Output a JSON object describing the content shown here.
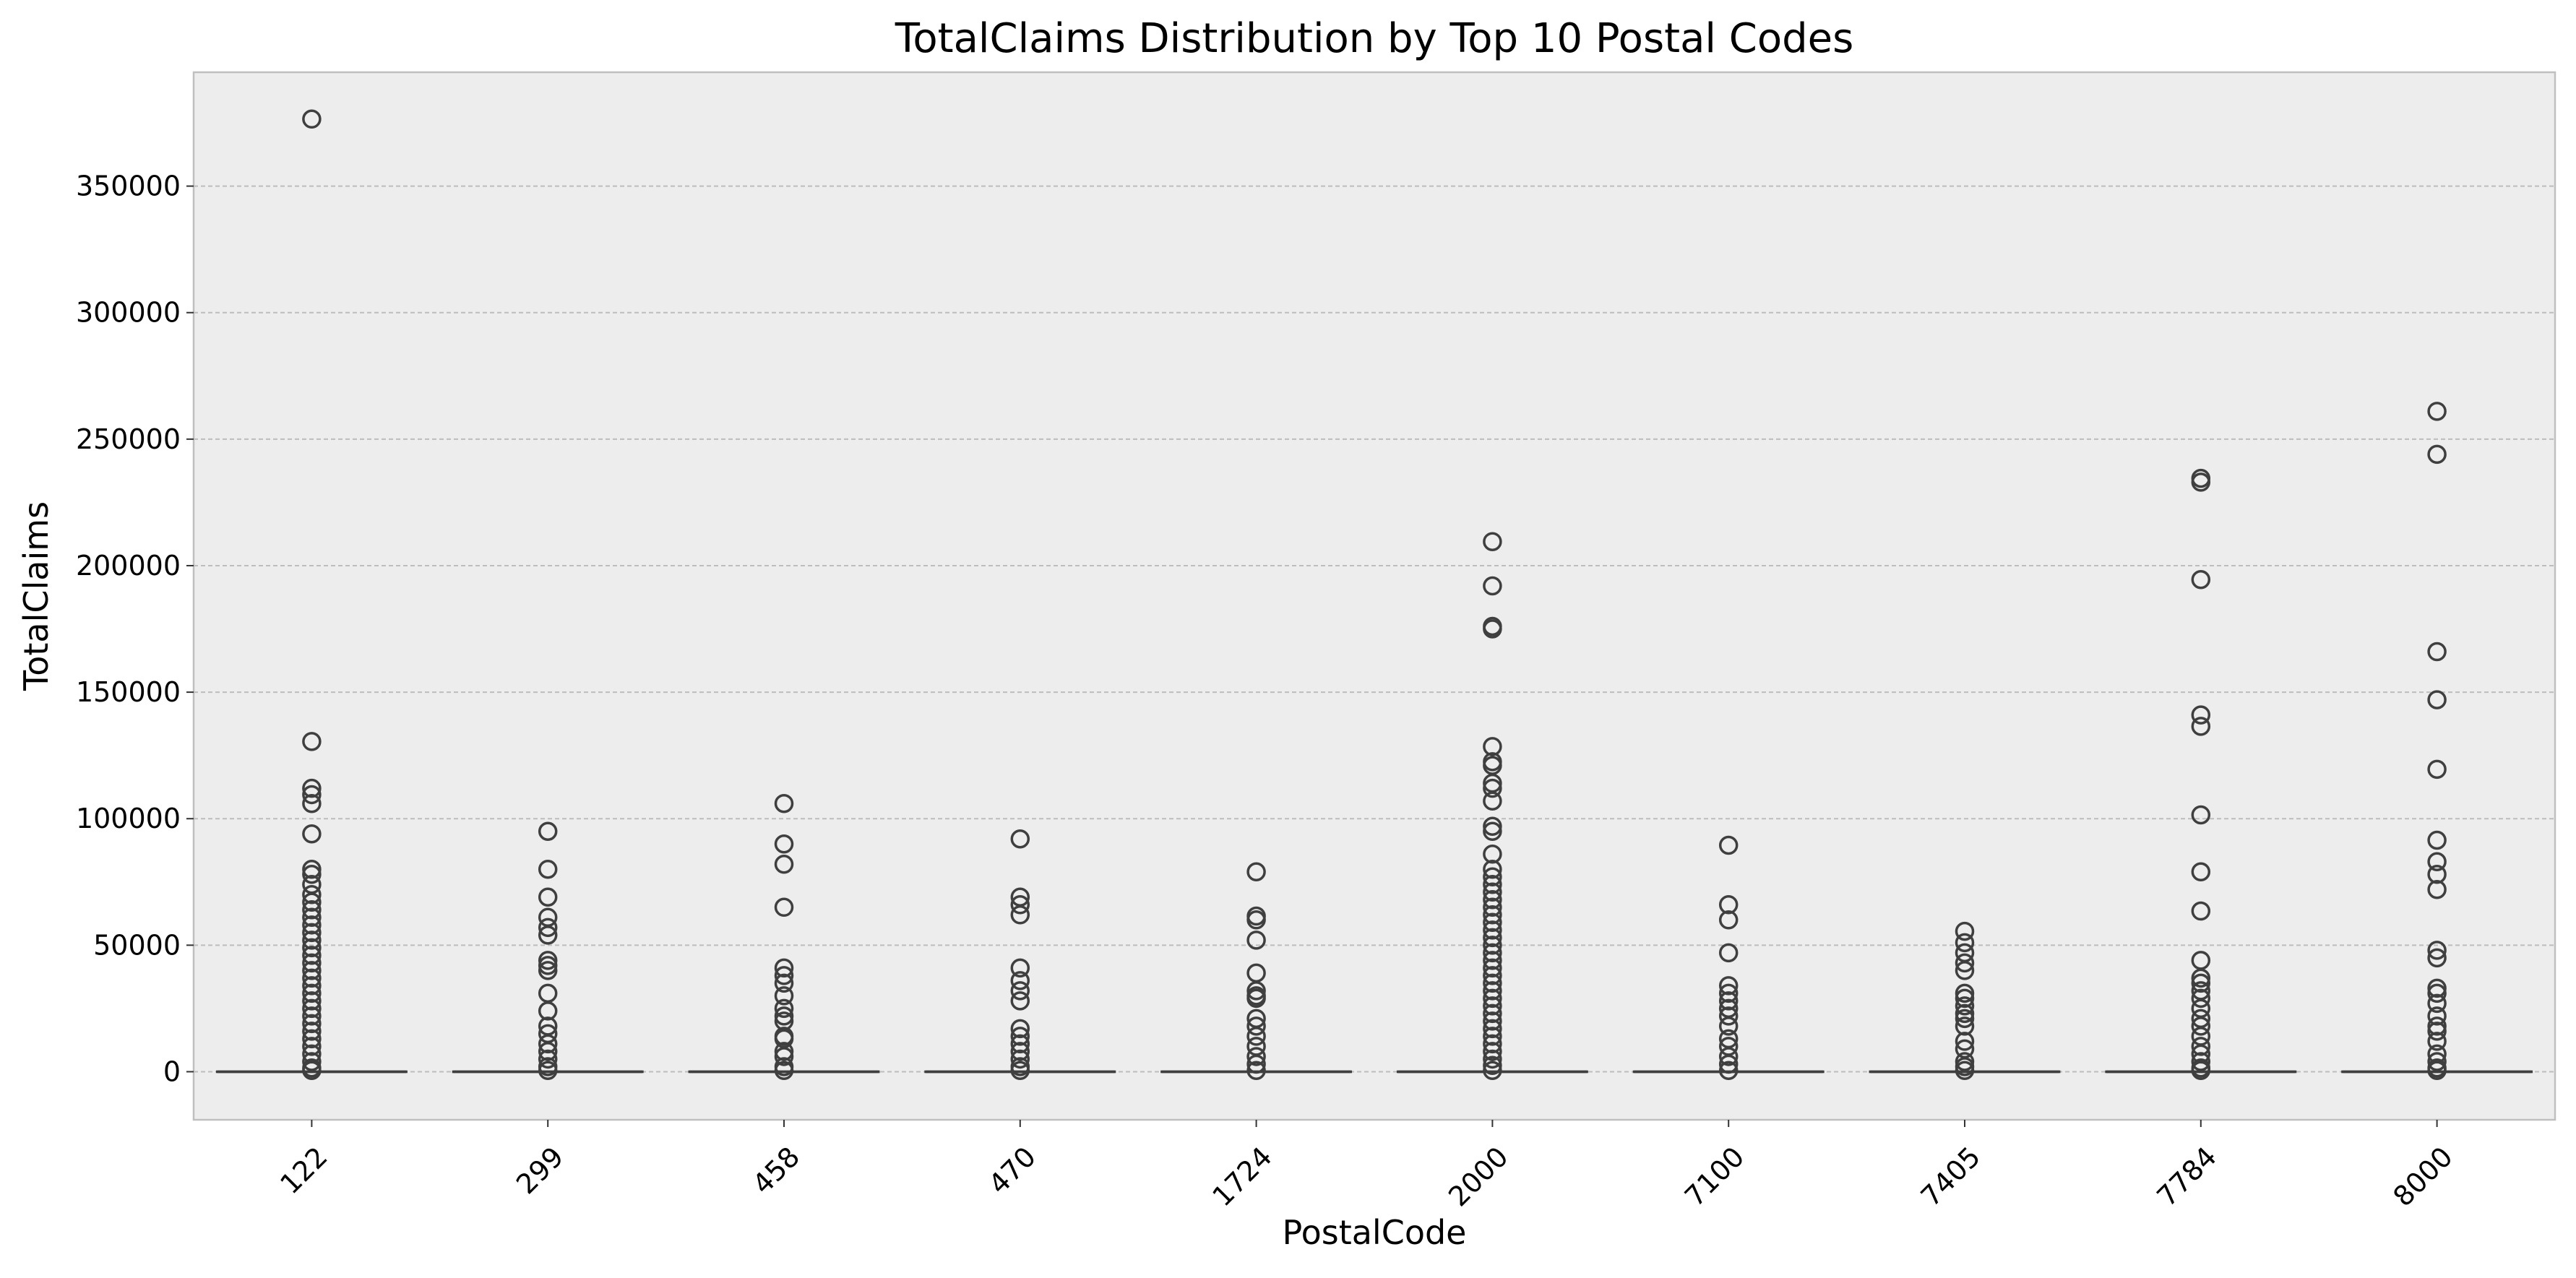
{
  "chart_data": {
    "type": "box",
    "title": "TotalClaims Distribution by Top 10 Postal Codes",
    "xlabel": "PostalCode",
    "ylabel": "TotalClaims",
    "ylim": [
      -19000,
      395000
    ],
    "yticks": [
      0,
      50000,
      100000,
      150000,
      200000,
      250000,
      300000,
      350000
    ],
    "grid": "y",
    "categories": [
      "122",
      "299",
      "458",
      "470",
      "1724",
      "2000",
      "7100",
      "7405",
      "7784",
      "8000"
    ],
    "boxes": [
      {
        "category": "122",
        "min": 0,
        "q1": 0,
        "median": 0,
        "q3": 0,
        "max": 0,
        "outliers": [
          376500,
          130500,
          112000,
          109500,
          106000,
          94000,
          80000,
          78000,
          74000,
          70000,
          67000,
          64000,
          61000,
          58000,
          55000,
          52000,
          49000,
          46000,
          43000,
          40000,
          37000,
          34000,
          31000,
          28000,
          25000,
          22000,
          19000,
          16000,
          13000,
          10000,
          7000,
          4000,
          1500,
          500
        ]
      },
      {
        "category": "299",
        "min": 0,
        "q1": 0,
        "median": 0,
        "q3": 0,
        "max": 0,
        "outliers": [
          95000,
          80000,
          69000,
          61000,
          57000,
          54000,
          44000,
          42000,
          40000,
          31000,
          24000,
          18000,
          15000,
          11000,
          8000,
          5000,
          2000,
          500
        ]
      },
      {
        "category": "458",
        "min": 0,
        "q1": 0,
        "median": 0,
        "q3": 0,
        "max": 0,
        "outliers": [
          106000,
          90000,
          82000,
          65000,
          41000,
          38000,
          35000,
          30000,
          25000,
          22000,
          20000,
          14000,
          13000,
          8000,
          6000,
          2000,
          500
        ]
      },
      {
        "category": "470",
        "min": 0,
        "q1": 0,
        "median": 0,
        "q3": 0,
        "max": 0,
        "outliers": [
          92000,
          69000,
          66000,
          62000,
          41000,
          36000,
          32000,
          28000,
          17000,
          14000,
          11000,
          8000,
          5000,
          2000,
          500
        ]
      },
      {
        "category": "1724",
        "min": 0,
        "q1": 0,
        "median": 0,
        "q3": 0,
        "max": 0,
        "outliers": [
          79000,
          61500,
          60000,
          52000,
          39000,
          32000,
          30000,
          29000,
          21000,
          18000,
          14000,
          10000,
          6000,
          3000,
          500
        ]
      },
      {
        "category": "2000",
        "min": 0,
        "q1": 0,
        "median": 0,
        "q3": 0,
        "max": 0,
        "outliers": [
          209500,
          192000,
          176000,
          175000,
          128500,
          122500,
          121000,
          114000,
          112000,
          107000,
          97000,
          95000,
          86000,
          80000,
          77000,
          74000,
          71000,
          68000,
          65000,
          62000,
          59000,
          56000,
          53000,
          50000,
          47000,
          44000,
          41000,
          38000,
          35000,
          32000,
          29000,
          26000,
          23000,
          20000,
          17000,
          14000,
          11000,
          8000,
          5000,
          2500,
          500
        ]
      },
      {
        "category": "7100",
        "min": 0,
        "q1": 0,
        "median": 0,
        "q3": 0,
        "max": 0,
        "outliers": [
          89500,
          66000,
          60000,
          47000,
          34000,
          31000,
          28000,
          25000,
          22000,
          18000,
          13000,
          10000,
          6000,
          3000,
          500
        ]
      },
      {
        "category": "7405",
        "min": 0,
        "q1": 0,
        "median": 0,
        "q3": 0,
        "max": 0,
        "outliers": [
          55500,
          51000,
          47000,
          43000,
          40000,
          31000,
          29000,
          26000,
          23000,
          21000,
          18000,
          12000,
          9000,
          4000,
          2000,
          500
        ]
      },
      {
        "category": "7784",
        "min": 0,
        "q1": 0,
        "median": 0,
        "q3": 0,
        "max": 0,
        "outliers": [
          234500,
          233000,
          194500,
          141000,
          136500,
          101500,
          79000,
          63500,
          44000,
          37000,
          35000,
          32000,
          29000,
          25000,
          21000,
          18000,
          14000,
          10000,
          7000,
          4000,
          1500,
          500
        ]
      },
      {
        "category": "8000",
        "min": 0,
        "q1": 0,
        "median": 0,
        "q3": 0,
        "max": 0,
        "outliers": [
          261000,
          244000,
          166000,
          147000,
          119500,
          91500,
          83000,
          78000,
          72000,
          48000,
          45000,
          33000,
          31000,
          27000,
          22000,
          18000,
          16000,
          12000,
          7000,
          4000,
          1500,
          500
        ]
      }
    ]
  }
}
